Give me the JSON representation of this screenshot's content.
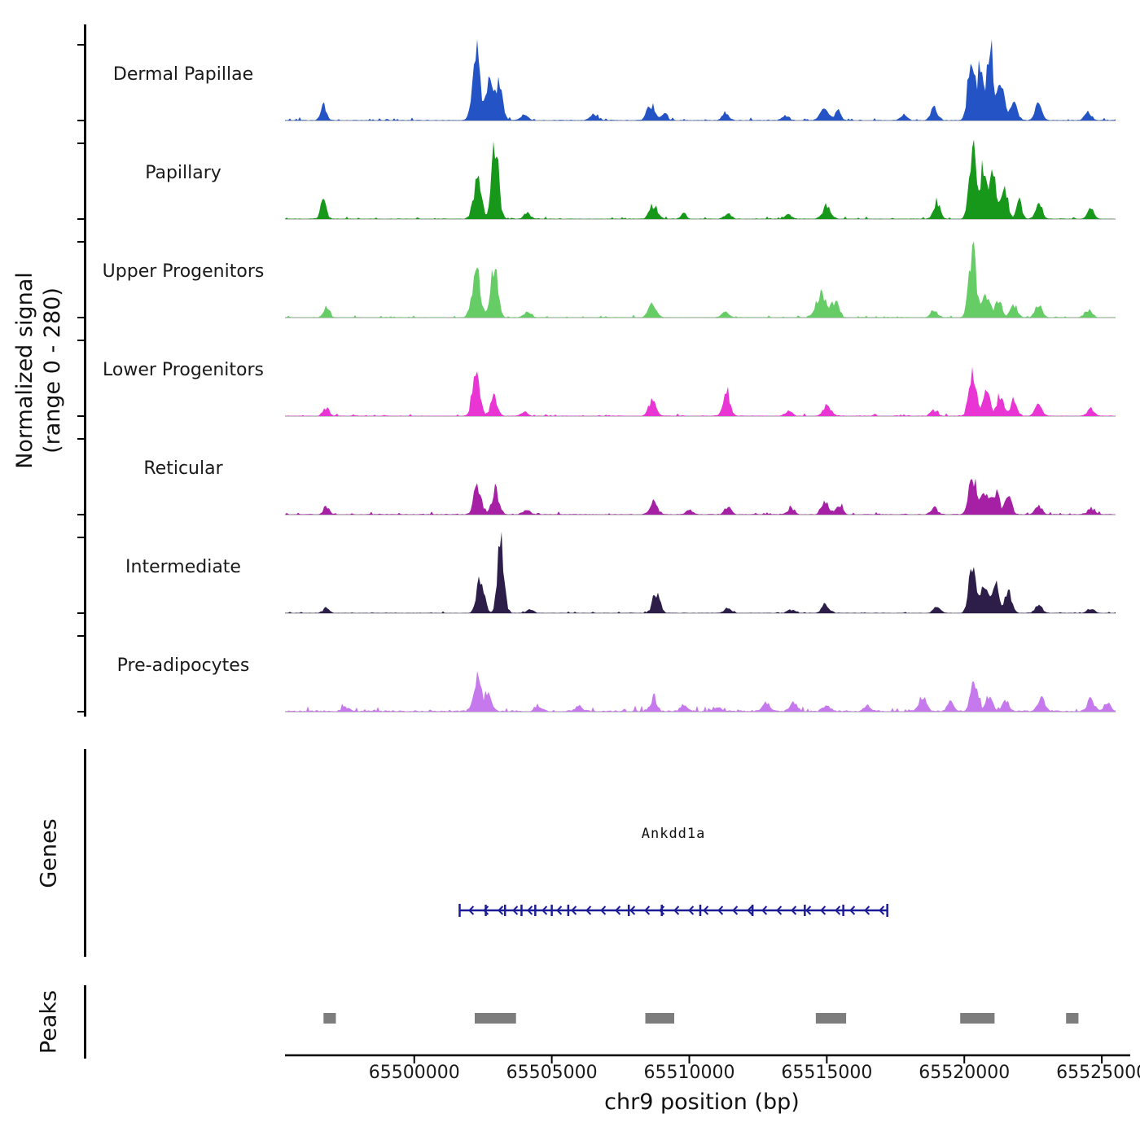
{
  "labels": {
    "y_axis_line1": "Normalized signal",
    "y_axis_line2": "(range 0 - 280)",
    "x_axis": "chr9 position (bp)",
    "genes_section": "Genes",
    "peaks_section": "Peaks"
  },
  "chart_data": {
    "type": "area",
    "title": "",
    "xlabel": "chr9 position (bp)",
    "ylabel": "Normalized signal (range 0 - 280)",
    "x_range_bp": [
      65495300,
      65525500
    ],
    "x_ticks": [
      65500000,
      65505000,
      65510000,
      65515000,
      65520000,
      65525000
    ],
    "x_tick_labels": [
      "65500000",
      "65505000",
      "65510000",
      "65515000",
      "65520000",
      "65525000"
    ],
    "y_range_per_track": [
      0,
      280
    ],
    "grid": false,
    "tracks": [
      {
        "name": "Dermal Papillae",
        "color": "#2353c4",
        "noise": 1.2,
        "peaks": [
          [
            65496700,
            55,
            250
          ],
          [
            65502250,
            245,
            330
          ],
          [
            65502750,
            150,
            300
          ],
          [
            65503100,
            130,
            300
          ],
          [
            65504000,
            20,
            300
          ],
          [
            65506500,
            22,
            300
          ],
          [
            65508600,
            55,
            350
          ],
          [
            65509100,
            30,
            250
          ],
          [
            65511300,
            25,
            300
          ],
          [
            65513500,
            15,
            300
          ],
          [
            65514900,
            50,
            350
          ],
          [
            65515400,
            35,
            250
          ],
          [
            65517800,
            15,
            300
          ],
          [
            65518900,
            45,
            300
          ],
          [
            65520250,
            220,
            300
          ],
          [
            65520600,
            185,
            250
          ],
          [
            65520950,
            250,
            300
          ],
          [
            65521350,
            130,
            300
          ],
          [
            65521800,
            75,
            300
          ],
          [
            65522700,
            55,
            300
          ],
          [
            65524500,
            28,
            300
          ]
        ]
      },
      {
        "name": "Papillary",
        "color": "#18981a",
        "noise": 1.0,
        "peaks": [
          [
            65496700,
            65,
            250
          ],
          [
            65502300,
            140,
            350
          ],
          [
            65502950,
            260,
            300
          ],
          [
            65504100,
            20,
            300
          ],
          [
            65508700,
            50,
            350
          ],
          [
            65509800,
            18,
            250
          ],
          [
            65511400,
            20,
            300
          ],
          [
            65513600,
            15,
            300
          ],
          [
            65515000,
            50,
            350
          ],
          [
            65519000,
            55,
            300
          ],
          [
            65520300,
            255,
            300
          ],
          [
            65520700,
            195,
            250
          ],
          [
            65521050,
            165,
            280
          ],
          [
            65521450,
            105,
            300
          ],
          [
            65522000,
            60,
            250
          ],
          [
            65522700,
            50,
            300
          ],
          [
            65524600,
            32,
            300
          ]
        ]
      },
      {
        "name": "Upper Progenitors",
        "color": "#66cc66",
        "noise": 1.0,
        "peaks": [
          [
            65496800,
            35,
            250
          ],
          [
            65502250,
            165,
            350
          ],
          [
            65502900,
            175,
            320
          ],
          [
            65504100,
            18,
            300
          ],
          [
            65508650,
            45,
            350
          ],
          [
            65511300,
            20,
            300
          ],
          [
            65514800,
            85,
            450
          ],
          [
            65515300,
            55,
            300
          ],
          [
            65518900,
            25,
            300
          ],
          [
            65520300,
            225,
            320
          ],
          [
            65520800,
            85,
            300
          ],
          [
            65521250,
            65,
            300
          ],
          [
            65521800,
            45,
            300
          ],
          [
            65522700,
            45,
            300
          ],
          [
            65524500,
            28,
            300
          ]
        ]
      },
      {
        "name": "Lower Progenitors",
        "color": "#e935d3",
        "noise": 1.0,
        "peaks": [
          [
            65496800,
            28,
            250
          ],
          [
            65502250,
            160,
            320
          ],
          [
            65502900,
            65,
            300
          ],
          [
            65504000,
            15,
            300
          ],
          [
            65508650,
            52,
            320
          ],
          [
            65511350,
            90,
            300
          ],
          [
            65513600,
            18,
            300
          ],
          [
            65515000,
            38,
            350
          ],
          [
            65518900,
            20,
            300
          ],
          [
            65520300,
            150,
            320
          ],
          [
            65520800,
            88,
            300
          ],
          [
            65521300,
            75,
            300
          ],
          [
            65521800,
            55,
            300
          ],
          [
            65522700,
            42,
            300
          ],
          [
            65524600,
            28,
            300
          ]
        ]
      },
      {
        "name": "Reticular",
        "color": "#a520a5",
        "noise": 1.2,
        "peaks": [
          [
            65496800,
            28,
            250
          ],
          [
            65502300,
            105,
            320
          ],
          [
            65502950,
            92,
            300
          ],
          [
            65504100,
            15,
            300
          ],
          [
            65508700,
            42,
            320
          ],
          [
            65510000,
            15,
            300
          ],
          [
            65511400,
            25,
            300
          ],
          [
            65513700,
            22,
            300
          ],
          [
            65514950,
            42,
            320
          ],
          [
            65515450,
            35,
            280
          ],
          [
            65518900,
            25,
            300
          ],
          [
            65520300,
            135,
            320
          ],
          [
            65520750,
            88,
            300
          ],
          [
            65521150,
            80,
            300
          ],
          [
            65521600,
            62,
            300
          ],
          [
            65522700,
            32,
            300
          ],
          [
            65524600,
            22,
            300
          ]
        ]
      },
      {
        "name": "Intermediate",
        "color": "#2c1d49",
        "noise": 0.8,
        "peaks": [
          [
            65496800,
            18,
            250
          ],
          [
            65502400,
            125,
            320
          ],
          [
            65503150,
            260,
            280
          ],
          [
            65504200,
            12,
            300
          ],
          [
            65508800,
            70,
            320
          ],
          [
            65511400,
            15,
            300
          ],
          [
            65513700,
            12,
            300
          ],
          [
            65514950,
            30,
            320
          ],
          [
            65519000,
            25,
            300
          ],
          [
            65520300,
            165,
            320
          ],
          [
            65520750,
            115,
            300
          ],
          [
            65521150,
            95,
            300
          ],
          [
            65521600,
            75,
            300
          ],
          [
            65522700,
            28,
            300
          ],
          [
            65524600,
            18,
            300
          ]
        ]
      },
      {
        "name": "Pre-adipocytes",
        "color": "#c679ec",
        "noise": 2.5,
        "peaks": [
          [
            65497500,
            15,
            300
          ],
          [
            65502300,
            135,
            320
          ],
          [
            65502700,
            55,
            280
          ],
          [
            65504500,
            18,
            300
          ],
          [
            65506000,
            20,
            300
          ],
          [
            65508700,
            38,
            320
          ],
          [
            65509800,
            25,
            300
          ],
          [
            65511000,
            18,
            300
          ],
          [
            65512800,
            28,
            300
          ],
          [
            65513800,
            30,
            300
          ],
          [
            65515000,
            25,
            300
          ],
          [
            65516500,
            20,
            300
          ],
          [
            65518500,
            55,
            320
          ],
          [
            65519500,
            30,
            300
          ],
          [
            65520350,
            95,
            320
          ],
          [
            65520900,
            55,
            300
          ],
          [
            65521500,
            40,
            300
          ],
          [
            65522800,
            48,
            300
          ],
          [
            65524600,
            45,
            300
          ],
          [
            65525200,
            30,
            300
          ]
        ]
      }
    ],
    "gene": {
      "name": "Ankdd1a",
      "start": 65501650,
      "end": 65517200,
      "strand": "-",
      "color": "#1c1c96",
      "exons": [
        65502600,
        65503300,
        65503900,
        65504400,
        65505000,
        65505600,
        65507800,
        65509000,
        65510400,
        65512300,
        65514200,
        65515600
      ]
    },
    "peak_regions": [
      [
        65496700,
        65497150
      ],
      [
        65502200,
        65503700
      ],
      [
        65508400,
        65509450
      ],
      [
        65514600,
        65515700
      ],
      [
        65519850,
        65521100
      ],
      [
        65523700,
        65524150
      ]
    ],
    "peak_color": "#7d7d7d",
    "baseline_color": "#8f8f8f"
  }
}
